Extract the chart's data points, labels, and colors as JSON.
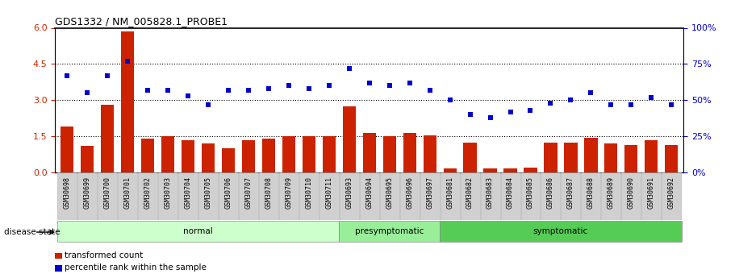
{
  "title": "GDS1332 / NM_005828.1_PROBE1",
  "samples": [
    "GSM30698",
    "GSM30699",
    "GSM30700",
    "GSM30701",
    "GSM30702",
    "GSM30703",
    "GSM30704",
    "GSM30705",
    "GSM30706",
    "GSM30707",
    "GSM30708",
    "GSM30709",
    "GSM30710",
    "GSM30711",
    "GSM30693",
    "GSM30694",
    "GSM30695",
    "GSM30696",
    "GSM30697",
    "GSM30681",
    "GSM30682",
    "GSM30683",
    "GSM30684",
    "GSM30685",
    "GSM30686",
    "GSM30687",
    "GSM30688",
    "GSM30689",
    "GSM30690",
    "GSM30691",
    "GSM30692"
  ],
  "bar_values": [
    1.9,
    1.1,
    2.8,
    5.85,
    1.4,
    1.5,
    1.35,
    1.2,
    1.0,
    1.35,
    1.4,
    1.5,
    1.5,
    1.5,
    2.75,
    1.65,
    1.5,
    1.65,
    1.55,
    0.15,
    1.25,
    0.15,
    0.15,
    0.2,
    1.25,
    1.25,
    1.45,
    1.2,
    1.15,
    1.35,
    1.15
  ],
  "dot_values_pct": [
    67,
    55,
    67,
    77,
    57,
    57,
    53,
    47,
    57,
    57,
    58,
    60,
    58,
    60,
    72,
    62,
    60,
    62,
    57,
    50,
    40,
    38,
    42,
    43,
    48,
    50,
    55,
    47,
    47,
    52,
    47
  ],
  "groups": [
    {
      "label": "normal",
      "start": 0,
      "end": 13,
      "color": "#ccffcc"
    },
    {
      "label": "presymptomatic",
      "start": 14,
      "end": 18,
      "color": "#99ee99"
    },
    {
      "label": "symptomatic",
      "start": 19,
      "end": 30,
      "color": "#55cc55"
    }
  ],
  "bar_color": "#cc2200",
  "dot_color": "#0000cc",
  "ylim_left": [
    0,
    6
  ],
  "ylim_right": [
    0,
    100
  ],
  "yticks_left": [
    0,
    1.5,
    3.0,
    4.5,
    6.0
  ],
  "yticks_right": [
    0,
    25,
    50,
    75,
    100
  ],
  "hlines": [
    1.5,
    3.0,
    4.5
  ],
  "background_color": "#ffffff",
  "disease_state_label": "disease state",
  "legend_items": [
    {
      "label": "transformed count",
      "color": "#cc2200"
    },
    {
      "label": "percentile rank within the sample",
      "color": "#0000cc"
    }
  ]
}
